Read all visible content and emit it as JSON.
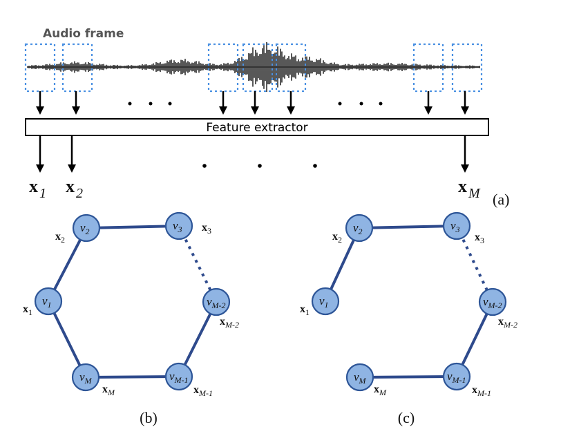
{
  "audio_label": "Audio frame",
  "extractor_label": "Feature extractor",
  "panel_a_label": "(a)",
  "panel_b_label": "(b)",
  "panel_c_label": "(c)",
  "features": [
    {
      "bold": "x",
      "sub": "1"
    },
    {
      "bold": "x",
      "sub": "2"
    },
    {
      "bold": "x",
      "sub": "M"
    }
  ],
  "graph_nodes": [
    {
      "v": "v",
      "sub": "1",
      "x_label": "x",
      "x_sub": "1"
    },
    {
      "v": "v",
      "sub": "2",
      "x_label": "x",
      "x_sub": "2"
    },
    {
      "v": "v",
      "sub": "3",
      "x_label": "x",
      "x_sub": "3"
    },
    {
      "v": "v",
      "sub": "M-2",
      "x_label": "x",
      "x_sub": "M-2"
    },
    {
      "v": "v",
      "sub": "M-1",
      "x_label": "x",
      "x_sub": "M-1"
    },
    {
      "v": "v",
      "sub": "M",
      "x_label": "x",
      "x_sub": "M"
    }
  ],
  "colors": {
    "node_fill": "#8fb4e3",
    "node_stroke": "#2d5597",
    "edge": "#2e4a8c",
    "window_box": "#4a90e2"
  }
}
